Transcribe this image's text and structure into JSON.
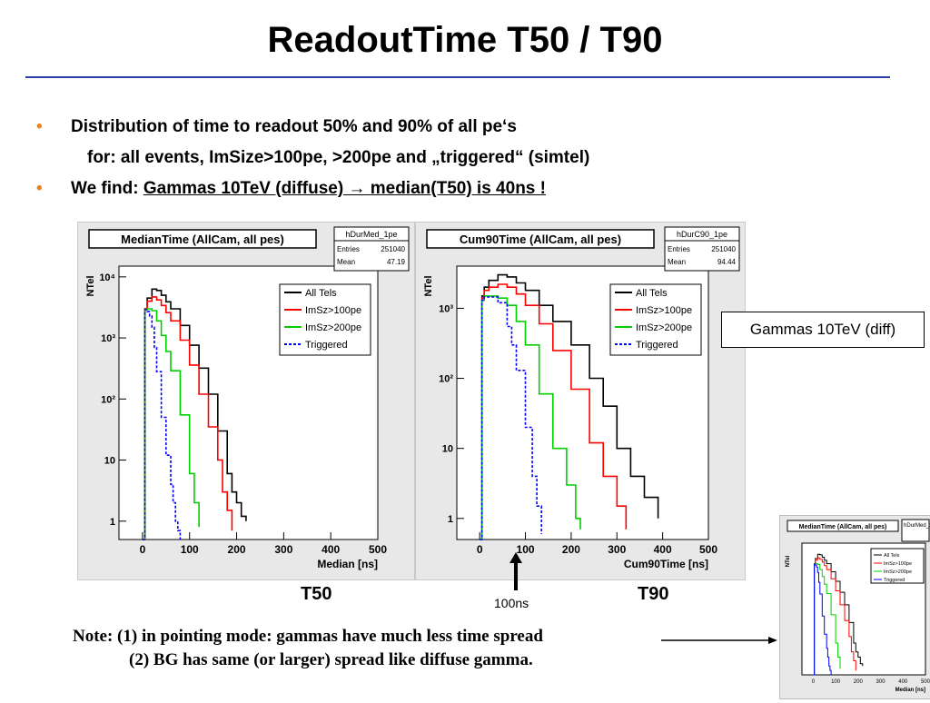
{
  "slide": {
    "title": "ReadoutTime T50 / T90",
    "bullets": [
      {
        "dot": "•",
        "line1": "Distribution of time to readout 50% and 90% of all pe‘s",
        "line2": "for: all events, ImSize>100pe, >200pe and „triggered“ (simtel)"
      },
      {
        "dot": "•",
        "prefix": "We find: ",
        "underlined": "Gammas 10TeV (diffuse) →  median(T50) is 40ns !"
      }
    ],
    "gamma_label": "Gammas 10TeV (diff)",
    "t50_label": "T50",
    "t90_label": "T90",
    "arrow_label": "100ns",
    "note_line1": "Note: (1)  in pointing mode:  gammas have much less time spread",
    "note_line2": "(2) BG has same (or larger) spread like diffuse gamma."
  },
  "colors": {
    "all": "#000000",
    "im100": "#ff0000",
    "im200": "#00d000",
    "trig": "#0000ff",
    "bullet": "#f07f1f",
    "rule": "#2b3fa8"
  },
  "chart_data": [
    {
      "type": "line",
      "title": "MedianTime (AllCam, all pes)",
      "stats": {
        "name": "hDurMed_1pe",
        "entries_label": "Entries",
        "entries": "251040",
        "mean_label": "Mean",
        "mean": "47.19"
      },
      "xlabel": "Median [ns]",
      "ylabel": "NTel",
      "log_y": true,
      "xlim": [
        -50,
        500
      ],
      "ylim": [
        0.5,
        15000
      ],
      "xticks": [
        0,
        100,
        200,
        300,
        400,
        500
      ],
      "yticks": [
        {
          "v": 1,
          "t": "1"
        },
        {
          "v": 10,
          "t": "10"
        },
        {
          "v": 100,
          "t": "10²"
        },
        {
          "v": 1000,
          "t": "10³"
        },
        {
          "v": 10000,
          "t": "10⁴"
        }
      ],
      "legend": [
        "All Tels",
        "ImSz>100pe",
        "ImSz>200pe",
        "Triggered"
      ],
      "series": [
        {
          "name": "All Tels",
          "x": [
            0,
            5,
            10,
            20,
            30,
            40,
            50,
            60,
            80,
            100,
            120,
            140,
            160,
            180,
            190,
            200,
            210,
            220
          ],
          "y": [
            0.5,
            3000,
            4500,
            6300,
            6000,
            5000,
            3900,
            3000,
            1600,
            760,
            320,
            120,
            30,
            6,
            3,
            2,
            1.2,
            1
          ]
        },
        {
          "name": "ImSz>100pe",
          "x": [
            0,
            5,
            10,
            20,
            30,
            40,
            50,
            60,
            80,
            100,
            120,
            140,
            160,
            170,
            180,
            190
          ],
          "y": [
            0.5,
            3000,
            4000,
            4700,
            4200,
            3400,
            2600,
            1900,
            920,
            360,
            120,
            35,
            10,
            3,
            1.5,
            0.7
          ]
        },
        {
          "name": "ImSz>200pe",
          "x": [
            0,
            5,
            10,
            20,
            30,
            40,
            50,
            60,
            80,
            100,
            110,
            120
          ],
          "y": [
            0.5,
            2900,
            3000,
            2800,
            1900,
            1100,
            600,
            290,
            55,
            6,
            2,
            0.8
          ]
        },
        {
          "name": "Triggered",
          "x": [
            0,
            5,
            10,
            15,
            20,
            25,
            30,
            40,
            50,
            60,
            65,
            70,
            75,
            80
          ],
          "y": [
            0.5,
            2900,
            2700,
            2300,
            1500,
            700,
            280,
            50,
            12,
            4,
            2,
            1,
            0.7,
            0.5
          ]
        }
      ]
    },
    {
      "type": "line",
      "title": "Cum90Time (AllCam, all pes)",
      "stats": {
        "name": "hDurC90_1pe",
        "entries_label": "Entries",
        "entries": "251040",
        "mean_label": "Mean",
        "mean": "94.44"
      },
      "xlabel": "Cum90Time [ns]",
      "ylabel": "NTel",
      "log_y": true,
      "xlim": [
        -50,
        500
      ],
      "ylim": [
        0.5,
        4000
      ],
      "xticks": [
        0,
        100,
        200,
        300,
        400,
        500
      ],
      "yticks": [
        {
          "v": 1,
          "t": "1"
        },
        {
          "v": 10,
          "t": "10"
        },
        {
          "v": 100,
          "t": "10²"
        },
        {
          "v": 1000,
          "t": "10³"
        }
      ],
      "legend": [
        "All Tels",
        "ImSz>100pe",
        "ImSz>200pe",
        "Triggered"
      ],
      "series": [
        {
          "name": "All Tels",
          "x": [
            0,
            5,
            10,
            20,
            40,
            60,
            80,
            100,
            130,
            160,
            200,
            240,
            270,
            300,
            330,
            360,
            390
          ],
          "y": [
            0.5,
            1500,
            2000,
            2500,
            3000,
            2800,
            2300,
            1800,
            1100,
            650,
            300,
            100,
            40,
            10,
            4,
            2,
            1
          ]
        },
        {
          "name": "ImSz>100pe",
          "x": [
            0,
            5,
            10,
            20,
            40,
            60,
            80,
            100,
            130,
            160,
            200,
            240,
            270,
            300,
            320
          ],
          "y": [
            0.5,
            1400,
            1800,
            2000,
            2200,
            2000,
            1600,
            1100,
            600,
            250,
            70,
            12,
            4,
            1.5,
            0.7
          ]
        },
        {
          "name": "ImSz>200pe",
          "x": [
            0,
            5,
            10,
            20,
            40,
            60,
            80,
            100,
            130,
            160,
            190,
            210,
            220
          ],
          "y": [
            0.5,
            1300,
            1500,
            1500,
            1400,
            1100,
            650,
            300,
            60,
            10,
            3,
            1,
            0.7
          ]
        },
        {
          "name": "Triggered",
          "x": [
            0,
            5,
            10,
            20,
            40,
            60,
            70,
            80,
            100,
            115,
            125,
            135
          ],
          "y": [
            0.5,
            1300,
            1450,
            1450,
            1200,
            550,
            300,
            130,
            20,
            4,
            1.5,
            0.6
          ]
        }
      ]
    }
  ],
  "thumbnail": {
    "title": "MedianTime (AllCam, all pes)",
    "stats": "hDurMed_1",
    "ylabel": "NTel",
    "xlabel": "Median [ns]",
    "xticks": [
      "0",
      "100",
      "200",
      "300",
      "400",
      "500"
    ],
    "legend": [
      "All Tels",
      "ImSz>100pe",
      "ImSz>200pe",
      "Triggered"
    ]
  }
}
